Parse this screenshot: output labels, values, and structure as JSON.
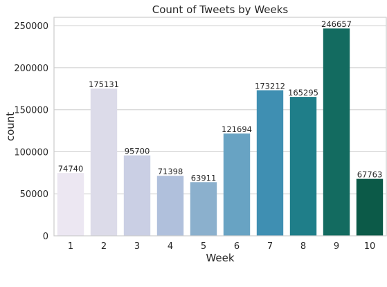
{
  "chart_data": {
    "type": "bar",
    "title": "Count of Tweets by Weeks",
    "xlabel": "Week",
    "ylabel": "count",
    "categories": [
      "1",
      "2",
      "3",
      "4",
      "5",
      "6",
      "7",
      "8",
      "9",
      "10"
    ],
    "values": [
      74740,
      175131,
      95700,
      71398,
      63911,
      121694,
      173212,
      165295,
      246657,
      67763
    ],
    "data_labels": [
      "74740",
      "175131",
      "95700",
      "71398",
      "63911",
      "121694",
      "173212",
      "165295",
      "246657",
      "67763"
    ],
    "yticks": [
      0,
      50000,
      100000,
      150000,
      200000,
      250000
    ],
    "ytick_labels": [
      "0",
      "50000",
      "100000",
      "150000",
      "200000",
      "250000"
    ],
    "ylim": [
      0,
      260000
    ],
    "grid": true,
    "colors": [
      "#ece7f2",
      "#dcdbe9",
      "#cacfe4",
      "#b0c0dc",
      "#8bb0cd",
      "#68a3c3",
      "#3f8fb2",
      "#1f7e89",
      "#136b60",
      "#0c5a48"
    ]
  }
}
